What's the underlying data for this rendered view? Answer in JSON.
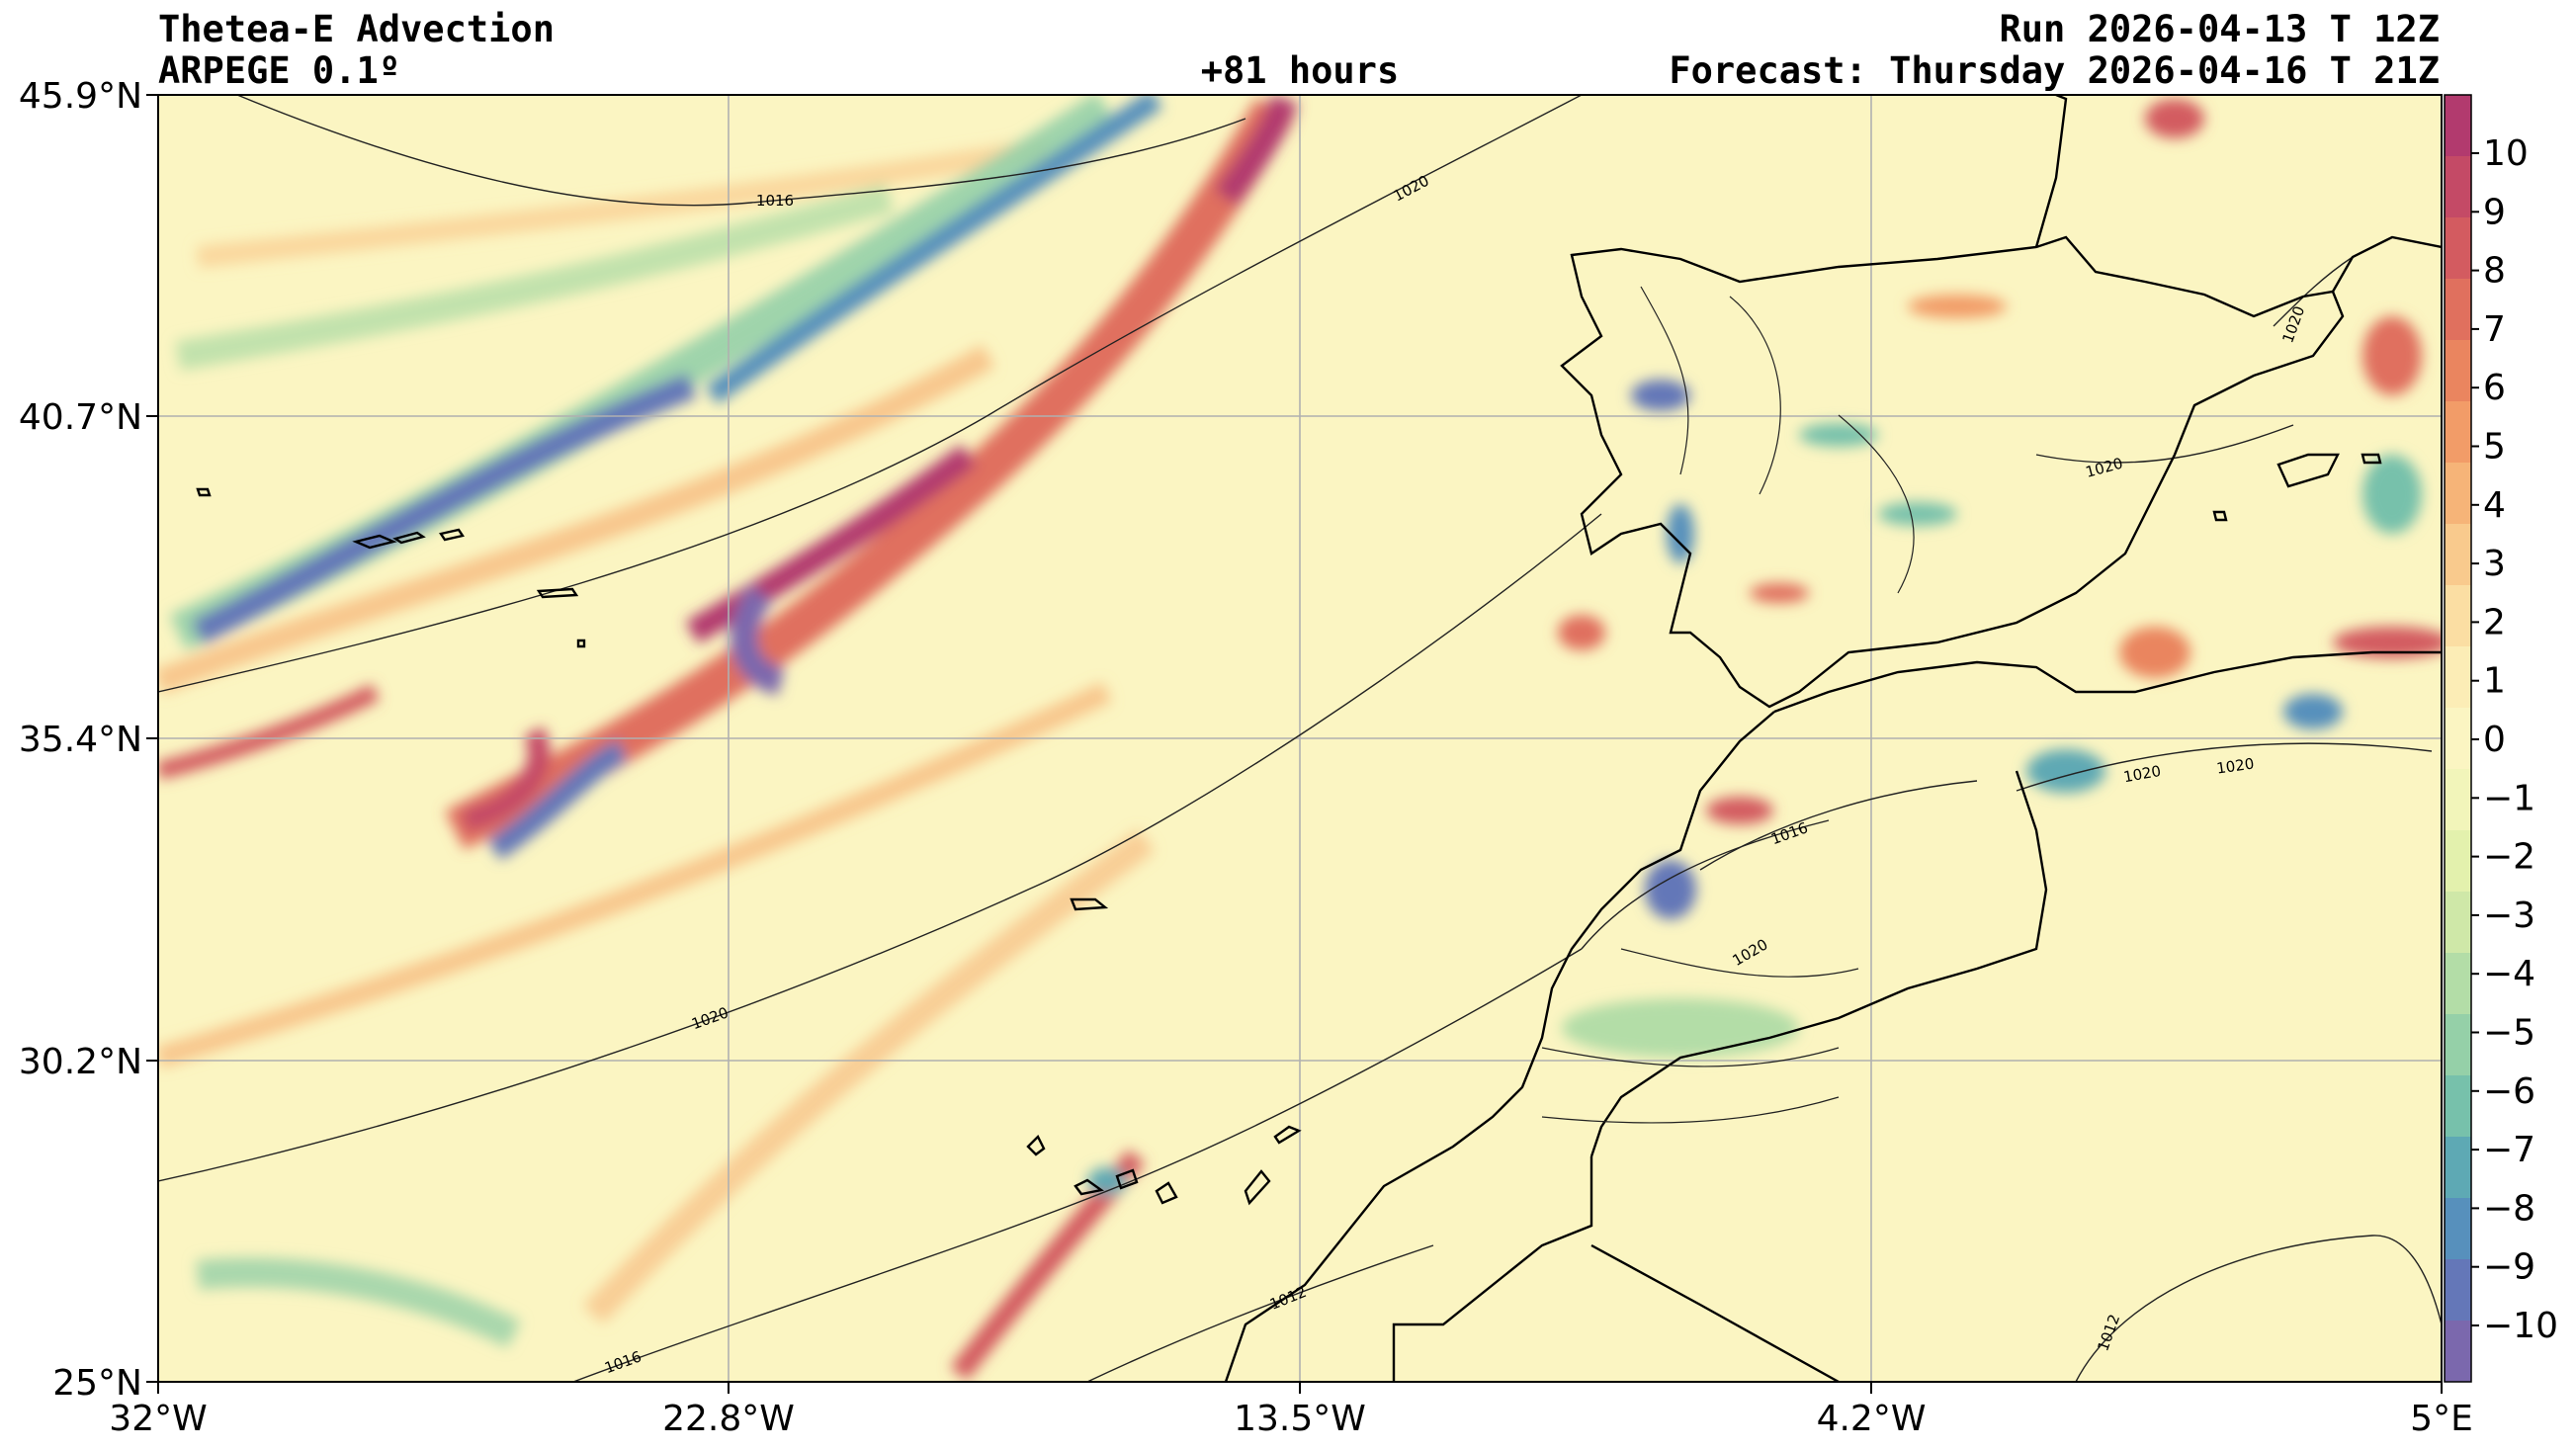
{
  "header": {
    "title": "Thetea-E Advection",
    "model": "ARPEGE 0.1º",
    "lead_time": "+81 hours",
    "run": "Run 2026-04-13 T 12Z",
    "forecast": "Forecast: Thursday 2026-04-16 T 21Z"
  },
  "map": {
    "lon_ticks": [
      "32°W",
      "22.8°W",
      "13.5°W",
      "4.2°W",
      "5°E"
    ],
    "lat_ticks": [
      "45.9°N",
      "40.7°N",
      "35.4°N",
      "30.2°N",
      "25°N"
    ],
    "grid": true
  },
  "colorbar": {
    "labels": [
      "10",
      "9",
      "8",
      "7",
      "6",
      "5",
      "4",
      "3",
      "2",
      "1",
      "0",
      "−1",
      "−2",
      "−3",
      "−4",
      "−5",
      "−6",
      "−7",
      "−8",
      "−9",
      "−10"
    ],
    "colors": [
      "#b23a6e",
      "#c44a66",
      "#d35b60",
      "#e0705e",
      "#ea855f",
      "#f29c68",
      "#f6b478",
      "#f9ca8d",
      "#fbdea3",
      "#fcedb6",
      "#fbf5c2",
      "#f2f5ba",
      "#e3f1ad",
      "#cfe8a8",
      "#b3dda7",
      "#95d0a8",
      "#77c1ab",
      "#5ea9b4",
      "#5790bc",
      "#6477b8",
      "#7b68ad"
    ]
  },
  "isobars": [
    "1016",
    "1020",
    "1020",
    "1020",
    "1012",
    "1016",
    "1020",
    "1016",
    "1020",
    "1020",
    "1020",
    "1012",
    "1012"
  ]
}
